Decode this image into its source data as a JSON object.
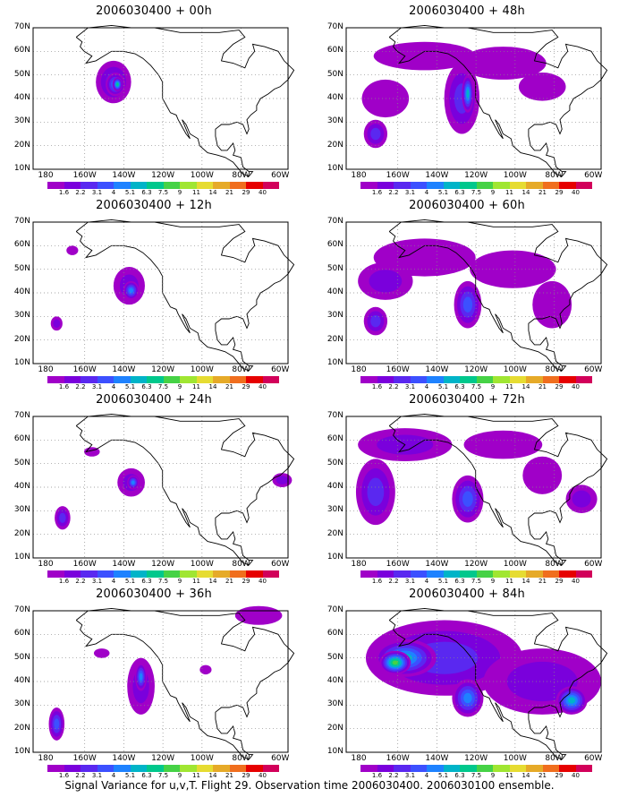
{
  "panels": [
    {
      "title": "2006030400 + 00h"
    },
    {
      "title": "2006030400 + 48h"
    },
    {
      "title": "2006030400 + 12h"
    },
    {
      "title": "2006030400 + 60h"
    },
    {
      "title": "2006030400 + 24h"
    },
    {
      "title": "2006030400 + 72h"
    },
    {
      "title": "2006030400 + 36h"
    },
    {
      "title": "2006030400 + 84h"
    }
  ],
  "y_axis_labels": [
    "70N",
    "60N",
    "50N",
    "40N",
    "30N",
    "20N",
    "10N"
  ],
  "x_axis_labels": [
    "180",
    "160W",
    "140W",
    "120W",
    "100W",
    "80W",
    "60W"
  ],
  "colorbar": {
    "labels": [
      "1.6",
      "2.2",
      "3.1",
      "4",
      "5.1",
      "6.3",
      "7.5",
      "9",
      "11",
      "14",
      "21",
      "29",
      "40"
    ],
    "colors": [
      "#a000c8",
      "#7a00dc",
      "#5a28f0",
      "#3c50ff",
      "#1e82ff",
      "#00b4c8",
      "#00c88c",
      "#46d246",
      "#a0e632",
      "#e6dc32",
      "#e6aa28",
      "#f06e1e",
      "#e60000",
      "#d2005a"
    ]
  },
  "footer": "Signal Variance for u,v,T. Flight 29. Observation time 2006030400. 2006030100 ensemble."
}
